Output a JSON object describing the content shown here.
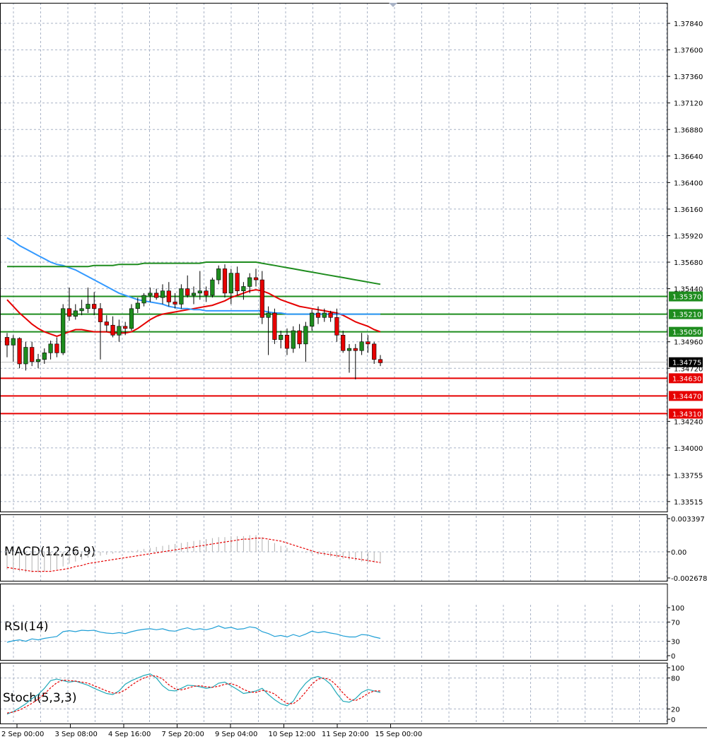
{
  "chart_data": {
    "type": "candlestick",
    "price_axis": {
      "ylim": [
        1.3345,
        1.38
      ],
      "ticks": [
        "1.37840",
        "1.37600",
        "1.37360",
        "1.37120",
        "1.36880",
        "1.36640",
        "1.36400",
        "1.36160",
        "1.35920",
        "1.35680",
        "1.35440",
        "1.34960",
        "1.34720",
        "1.34240",
        "1.34000",
        "1.33755",
        "1.33515"
      ],
      "current_price": "1.34775"
    },
    "time_axis": {
      "labels": [
        "2 Sep 00:00",
        "3 Sep 08:00",
        "4 Sep 16:00",
        "7 Sep 20:00",
        "9 Sep 04:00",
        "10 Sep 12:00",
        "11 Sep 20:00",
        "15 Sep 00:00"
      ]
    },
    "levels": [
      {
        "label": "1.35370",
        "value": 1.3537,
        "color": "#1e8c1e",
        "kind": "resistance"
      },
      {
        "label": "1.35210",
        "value": 1.3521,
        "color": "#1e8c1e",
        "kind": "resistance"
      },
      {
        "label": "1.35050",
        "value": 1.3505,
        "color": "#1e8c1e",
        "kind": "resistance"
      },
      {
        "label": "1.34630",
        "value": 1.3463,
        "color": "#e60000",
        "kind": "support"
      },
      {
        "label": "1.34470",
        "value": 1.3447,
        "color": "#e60000",
        "kind": "support"
      },
      {
        "label": "1.34310",
        "value": 1.3431,
        "color": "#e60000",
        "kind": "support"
      }
    ],
    "candles": [
      {
        "o": 1.35,
        "h": 1.3504,
        "l": 1.3482,
        "c": 1.3493
      },
      {
        "o": 1.3493,
        "h": 1.3502,
        "l": 1.3478,
        "c": 1.3499
      },
      {
        "o": 1.3499,
        "h": 1.35,
        "l": 1.3472,
        "c": 1.3476
      },
      {
        "o": 1.3476,
        "h": 1.3496,
        "l": 1.347,
        "c": 1.3491
      },
      {
        "o": 1.3491,
        "h": 1.3496,
        "l": 1.3474,
        "c": 1.3478
      },
      {
        "o": 1.3478,
        "h": 1.3485,
        "l": 1.3472,
        "c": 1.348
      },
      {
        "o": 1.348,
        "h": 1.349,
        "l": 1.3476,
        "c": 1.3486
      },
      {
        "o": 1.3486,
        "h": 1.3497,
        "l": 1.348,
        "c": 1.3494
      },
      {
        "o": 1.3494,
        "h": 1.35,
        "l": 1.3482,
        "c": 1.3486
      },
      {
        "o": 1.3486,
        "h": 1.353,
        "l": 1.3484,
        "c": 1.3526
      },
      {
        "o": 1.3526,
        "h": 1.3545,
        "l": 1.3515,
        "c": 1.3519
      },
      {
        "o": 1.3519,
        "h": 1.353,
        "l": 1.3516,
        "c": 1.3524
      },
      {
        "o": 1.3524,
        "h": 1.3534,
        "l": 1.352,
        "c": 1.3526
      },
      {
        "o": 1.3526,
        "h": 1.3545,
        "l": 1.3522,
        "c": 1.353
      },
      {
        "o": 1.353,
        "h": 1.3541,
        "l": 1.352,
        "c": 1.3526
      },
      {
        "o": 1.3526,
        "h": 1.3531,
        "l": 1.348,
        "c": 1.3514
      },
      {
        "o": 1.3514,
        "h": 1.352,
        "l": 1.3505,
        "c": 1.3511
      },
      {
        "o": 1.3511,
        "h": 1.3519,
        "l": 1.35,
        "c": 1.3502
      },
      {
        "o": 1.3502,
        "h": 1.3516,
        "l": 1.3496,
        "c": 1.351
      },
      {
        "o": 1.351,
        "h": 1.3514,
        "l": 1.3502,
        "c": 1.3508
      },
      {
        "o": 1.3508,
        "h": 1.353,
        "l": 1.3506,
        "c": 1.3526
      },
      {
        "o": 1.3526,
        "h": 1.3536,
        "l": 1.3522,
        "c": 1.3531
      },
      {
        "o": 1.3531,
        "h": 1.354,
        "l": 1.3528,
        "c": 1.3538
      },
      {
        "o": 1.3538,
        "h": 1.3545,
        "l": 1.3532,
        "c": 1.354
      },
      {
        "o": 1.354,
        "h": 1.3544,
        "l": 1.3534,
        "c": 1.3536
      },
      {
        "o": 1.3536,
        "h": 1.3548,
        "l": 1.353,
        "c": 1.3542
      },
      {
        "o": 1.3542,
        "h": 1.355,
        "l": 1.3528,
        "c": 1.3532
      },
      {
        "o": 1.3532,
        "h": 1.354,
        "l": 1.3526,
        "c": 1.353
      },
      {
        "o": 1.353,
        "h": 1.3548,
        "l": 1.3526,
        "c": 1.3544
      },
      {
        "o": 1.3544,
        "h": 1.3556,
        "l": 1.3536,
        "c": 1.3538
      },
      {
        "o": 1.3538,
        "h": 1.3546,
        "l": 1.353,
        "c": 1.354
      },
      {
        "o": 1.354,
        "h": 1.356,
        "l": 1.3534,
        "c": 1.3542
      },
      {
        "o": 1.3542,
        "h": 1.3546,
        "l": 1.3532,
        "c": 1.3538
      },
      {
        "o": 1.3538,
        "h": 1.3554,
        "l": 1.3536,
        "c": 1.3552
      },
      {
        "o": 1.3552,
        "h": 1.3565,
        "l": 1.3548,
        "c": 1.3562
      },
      {
        "o": 1.3562,
        "h": 1.3566,
        "l": 1.3536,
        "c": 1.354
      },
      {
        "o": 1.354,
        "h": 1.3562,
        "l": 1.353,
        "c": 1.3558
      },
      {
        "o": 1.3558,
        "h": 1.3564,
        "l": 1.3538,
        "c": 1.3542
      },
      {
        "o": 1.3542,
        "h": 1.355,
        "l": 1.3534,
        "c": 1.3546
      },
      {
        "o": 1.3546,
        "h": 1.3558,
        "l": 1.354,
        "c": 1.3554
      },
      {
        "o": 1.3554,
        "h": 1.3562,
        "l": 1.3546,
        "c": 1.3552
      },
      {
        "o": 1.3552,
        "h": 1.356,
        "l": 1.3512,
        "c": 1.3518
      },
      {
        "o": 1.3518,
        "h": 1.3528,
        "l": 1.3484,
        "c": 1.3522
      },
      {
        "o": 1.3522,
        "h": 1.3526,
        "l": 1.3494,
        "c": 1.3498
      },
      {
        "o": 1.3498,
        "h": 1.3506,
        "l": 1.349,
        "c": 1.3502
      },
      {
        "o": 1.3502,
        "h": 1.3508,
        "l": 1.3484,
        "c": 1.349
      },
      {
        "o": 1.349,
        "h": 1.351,
        "l": 1.3486,
        "c": 1.3506
      },
      {
        "o": 1.3506,
        "h": 1.3512,
        "l": 1.349,
        "c": 1.3494
      },
      {
        "o": 1.3494,
        "h": 1.3514,
        "l": 1.3478,
        "c": 1.351
      },
      {
        "o": 1.351,
        "h": 1.3525,
        "l": 1.3506,
        "c": 1.3522
      },
      {
        "o": 1.3522,
        "h": 1.3528,
        "l": 1.3512,
        "c": 1.3518
      },
      {
        "o": 1.3518,
        "h": 1.3526,
        "l": 1.3514,
        "c": 1.3522
      },
      {
        "o": 1.3522,
        "h": 1.3524,
        "l": 1.3514,
        "c": 1.3518
      },
      {
        "o": 1.3518,
        "h": 1.3526,
        "l": 1.3496,
        "c": 1.3502
      },
      {
        "o": 1.3502,
        "h": 1.3506,
        "l": 1.3486,
        "c": 1.3488
      },
      {
        "o": 1.3488,
        "h": 1.3494,
        "l": 1.3468,
        "c": 1.349
      },
      {
        "o": 1.349,
        "h": 1.3494,
        "l": 1.3462,
        "c": 1.3488
      },
      {
        "o": 1.3488,
        "h": 1.3504,
        "l": 1.3484,
        "c": 1.3496
      },
      {
        "o": 1.3496,
        "h": 1.3502,
        "l": 1.3486,
        "c": 1.3494
      },
      {
        "o": 1.3494,
        "h": 1.3496,
        "l": 1.3476,
        "c": 1.348
      },
      {
        "o": 1.348,
        "h": 1.3484,
        "l": 1.3474,
        "c": 1.3477
      }
    ],
    "moving_averages": [
      {
        "color": "#e60000",
        "values": [
          1.3534,
          1.3528,
          1.3522,
          1.3517,
          1.3512,
          1.3508,
          1.3505,
          1.3503,
          1.3501,
          1.3503,
          1.3505,
          1.3507,
          1.3507,
          1.3506,
          1.3505,
          1.3505,
          1.3505,
          1.3504,
          1.3504,
          1.3504,
          1.3505,
          1.3508,
          1.3512,
          1.3516,
          1.3519,
          1.3521,
          1.3522,
          1.3523,
          1.3524,
          1.3525,
          1.3526,
          1.3527,
          1.3528,
          1.3529,
          1.3531,
          1.3533,
          1.3536,
          1.3538,
          1.354,
          1.3542,
          1.3543,
          1.3542,
          1.354,
          1.3537,
          1.3534,
          1.3532,
          1.353,
          1.3528,
          1.3527,
          1.3526,
          1.3525,
          1.3524,
          1.3523,
          1.3522,
          1.352,
          1.3517,
          1.3514,
          1.3512,
          1.351,
          1.3507,
          1.3505
        ]
      },
      {
        "color": "#3399ff",
        "values": [
          1.359,
          1.3587,
          1.3583,
          1.358,
          1.3577,
          1.3574,
          1.3571,
          1.3568,
          1.3566,
          1.3565,
          1.3563,
          1.3561,
          1.3558,
          1.3555,
          1.3552,
          1.3549,
          1.3546,
          1.3543,
          1.354,
          1.3538,
          1.3536,
          1.3534,
          1.3533,
          1.3532,
          1.3531,
          1.353,
          1.3528,
          1.3527,
          1.3526,
          1.3526,
          1.3525,
          1.3525,
          1.3524,
          1.3524,
          1.3524,
          1.3524,
          1.3524,
          1.3524,
          1.3524,
          1.3524,
          1.3524,
          1.3524,
          1.3523,
          1.3522,
          1.3522,
          1.3521,
          1.3521,
          1.3521,
          1.3521,
          1.3521,
          1.3521,
          1.3521,
          1.3521,
          1.3521,
          1.3521,
          1.3521,
          1.3521,
          1.3521,
          1.3521,
          1.3521,
          1.3521
        ]
      },
      {
        "color": "#1e8c1e",
        "values": [
          1.3564,
          1.3564,
          1.3564,
          1.3564,
          1.3564,
          1.3564,
          1.3564,
          1.3564,
          1.3564,
          1.3564,
          1.3564,
          1.3564,
          1.3564,
          1.3564,
          1.3565,
          1.3565,
          1.3565,
          1.3565,
          1.3566,
          1.3566,
          1.3566,
          1.3566,
          1.3567,
          1.3567,
          1.3567,
          1.3567,
          1.3567,
          1.3567,
          1.3567,
          1.3567,
          1.3567,
          1.3567,
          1.3568,
          1.3568,
          1.3568,
          1.3568,
          1.3568,
          1.3568,
          1.3568,
          1.3568,
          1.3568,
          1.3567,
          1.3566,
          1.3565,
          1.3564,
          1.3563,
          1.3562,
          1.3561,
          1.356,
          1.3559,
          1.3558,
          1.3557,
          1.3556,
          1.3555,
          1.3554,
          1.3553,
          1.3552,
          1.3551,
          1.355,
          1.3549,
          1.3548
        ]
      }
    ],
    "macd": {
      "label": "MACD(12,26,9)",
      "ylim": [
        -0.002678,
        0.003397
      ],
      "ticks": [
        "0.003397",
        "0.00",
        "-0.002678"
      ],
      "tick_values": [
        0.003397,
        0,
        -0.002678
      ],
      "histogram": [
        -0.0018,
        -0.0019,
        -0.002,
        -0.0021,
        -0.0021,
        -0.0021,
        -0.002,
        -0.0019,
        -0.0018,
        -0.0015,
        -0.0012,
        -0.001,
        -0.0008,
        -0.0006,
        -0.0005,
        -0.0004,
        -0.0003,
        -0.0002,
        -0.0001,
        0.0,
        0.0001,
        0.0002,
        0.0003,
        0.0004,
        0.0005,
        0.0006,
        0.0007,
        0.0008,
        0.0009,
        0.001,
        0.0011,
        0.0012,
        0.0013,
        0.0014,
        0.0015,
        0.0015,
        0.0016,
        0.0016,
        0.0016,
        0.0017,
        0.0017,
        0.0015,
        0.0012,
        0.0009,
        0.0006,
        0.0004,
        0.0002,
        0.0,
        -0.0001,
        -0.0002,
        -0.0003,
        -0.0004,
        -0.0005,
        -0.0006,
        -0.0007,
        -0.0008,
        -0.0009,
        -0.001,
        -0.0011,
        -0.0011,
        -0.0012
      ],
      "signal": [
        -0.0016,
        -0.0017,
        -0.0018,
        -0.0019,
        -0.002,
        -0.002,
        -0.002,
        -0.002,
        -0.0019,
        -0.0018,
        -0.0017,
        -0.0015,
        -0.0014,
        -0.0012,
        -0.0011,
        -0.001,
        -0.0009,
        -0.0008,
        -0.0007,
        -0.0006,
        -0.0005,
        -0.0004,
        -0.0003,
        -0.0002,
        -0.0001,
        0.0,
        0.0001,
        0.0002,
        0.0003,
        0.0004,
        0.0005,
        0.0006,
        0.0007,
        0.0008,
        0.0009,
        0.001,
        0.0011,
        0.0012,
        0.0013,
        0.0013,
        0.0014,
        0.0014,
        0.0013,
        0.0012,
        0.0011,
        0.0009,
        0.0007,
        0.0005,
        0.0003,
        0.0001,
        -0.0001,
        -0.0002,
        -0.0003,
        -0.0004,
        -0.0005,
        -0.0006,
        -0.0007,
        -0.0008,
        -0.0009,
        -0.001,
        -0.0011
      ]
    },
    "rsi": {
      "label": "RSI(14)",
      "ylim": [
        0,
        100
      ],
      "ticks": [
        "100",
        "70",
        "30",
        "0"
      ],
      "tick_values": [
        100,
        70,
        30,
        0
      ],
      "values": [
        28,
        31,
        33,
        30,
        35,
        33,
        36,
        38,
        40,
        50,
        52,
        50,
        53,
        52,
        53,
        49,
        47,
        46,
        48,
        46,
        50,
        53,
        55,
        56,
        54,
        56,
        52,
        51,
        55,
        58,
        54,
        56,
        54,
        57,
        62,
        57,
        59,
        55,
        56,
        60,
        58,
        50,
        46,
        40,
        42,
        39,
        44,
        40,
        45,
        51,
        48,
        50,
        47,
        45,
        41,
        39,
        39,
        44,
        43,
        39,
        36
      ]
    },
    "stoch": {
      "label": "Stoch(5,3,3)",
      "ylim": [
        0,
        100
      ],
      "ticks": [
        "100",
        "80",
        "20",
        "0"
      ],
      "tick_values": [
        100,
        80,
        20,
        0
      ],
      "k": [
        10,
        15,
        22,
        30,
        40,
        48,
        60,
        75,
        78,
        75,
        72,
        74,
        70,
        66,
        60,
        55,
        50,
        48,
        55,
        68,
        75,
        80,
        85,
        88,
        80,
        65,
        56,
        55,
        60,
        66,
        65,
        63,
        60,
        62,
        70,
        72,
        65,
        58,
        50,
        52,
        55,
        60,
        48,
        38,
        30,
        26,
        35,
        55,
        70,
        80,
        83,
        78,
        68,
        50,
        35,
        33,
        40,
        52,
        58,
        55,
        52
      ],
      "d": [
        12,
        14,
        18,
        24,
        31,
        39,
        49,
        61,
        71,
        76,
        75,
        74,
        72,
        70,
        65,
        60,
        55,
        51,
        51,
        57,
        66,
        74,
        80,
        84,
        84,
        78,
        67,
        59,
        57,
        60,
        64,
        65,
        63,
        62,
        64,
        68,
        69,
        65,
        58,
        53,
        52,
        56,
        54,
        49,
        39,
        31,
        30,
        39,
        53,
        68,
        78,
        80,
        76,
        65,
        51,
        39,
        36,
        42,
        50,
        55,
        55
      ]
    }
  }
}
